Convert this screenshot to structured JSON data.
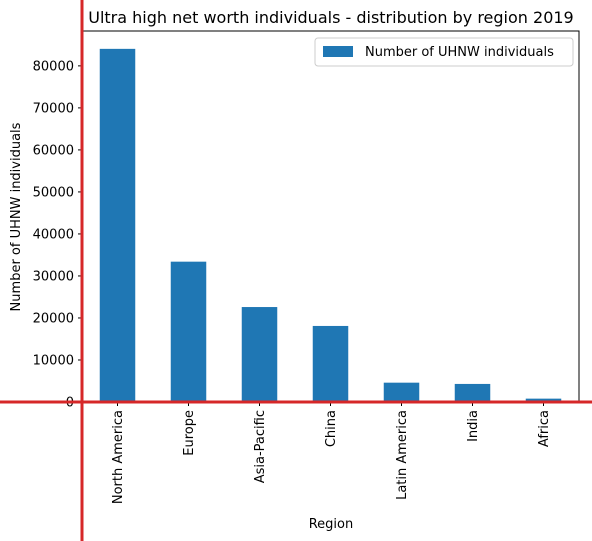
{
  "chart_data": {
    "type": "bar",
    "title": "Ultra high net worth individuals - distribution by region 2019",
    "xlabel": "Region",
    "ylabel": "Number of UHNW individuals",
    "categories": [
      "North America",
      "Europe",
      "Asia-Pacific",
      "China",
      "Latin America",
      "India",
      "Africa"
    ],
    "series": [
      {
        "name": "Number of UHNW individuals",
        "values": [
          84050,
          33400,
          22600,
          18100,
          4600,
          4300,
          800
        ]
      }
    ],
    "ylim": [
      0,
      88300
    ],
    "yticks": [
      0,
      10000,
      20000,
      30000,
      40000,
      50000,
      60000,
      70000,
      80000
    ],
    "grid": false,
    "legend": "top-right",
    "colors": {
      "bar": "#1f77b4",
      "overlay_axes": "#d62728"
    }
  }
}
